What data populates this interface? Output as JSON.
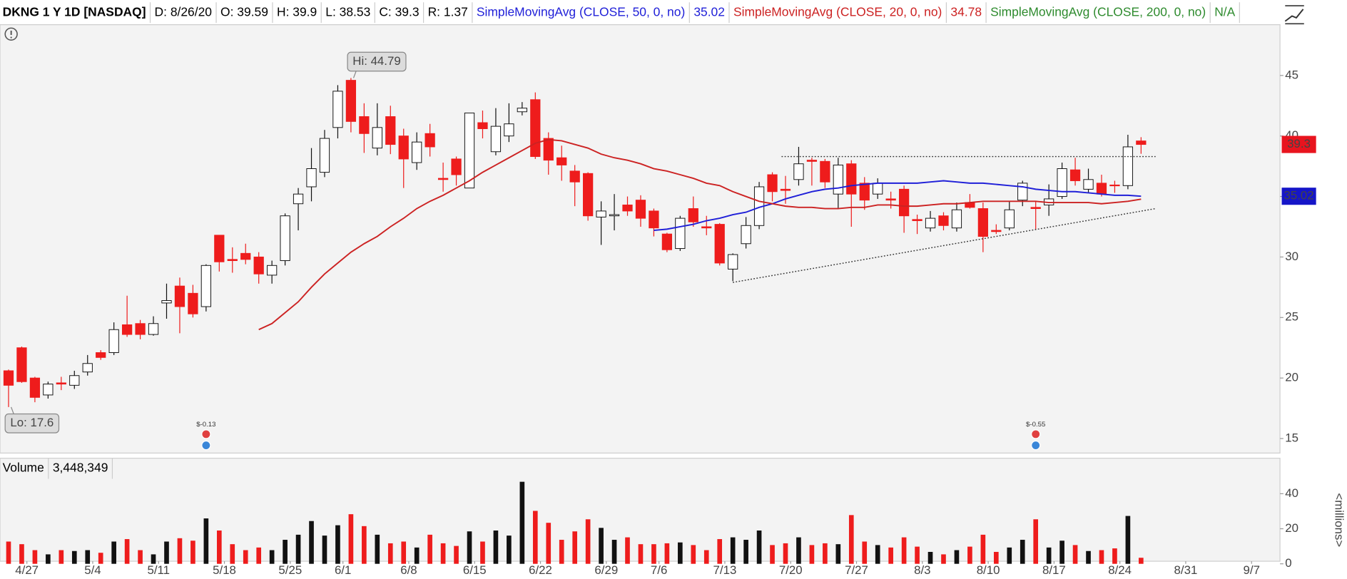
{
  "chart_data": {
    "type": "candlestick",
    "title": "DKNG 1 Y 1D [NASDAQ]",
    "header_fields": [
      "D: 8/26/20",
      "O: 39.59",
      "H: 39.9",
      "L: 38.53",
      "C: 39.3",
      "R: 1.37"
    ],
    "xlim": [
      -0.65,
      96.55
    ],
    "xticks": [
      {
        "value": 1,
        "label": "4/27"
      },
      {
        "value": 6,
        "label": "5/4"
      },
      {
        "value": 11,
        "label": "5/11"
      },
      {
        "value": 16,
        "label": "5/18"
      },
      {
        "value": 21,
        "label": "5/25"
      },
      {
        "value": 25,
        "label": "6/1"
      },
      {
        "value": 30,
        "label": "6/8"
      },
      {
        "value": 35,
        "label": "6/15"
      },
      {
        "value": 40,
        "label": "6/22"
      },
      {
        "value": 45,
        "label": "6/29"
      },
      {
        "value": 49,
        "label": "7/6"
      },
      {
        "value": 54,
        "label": "7/13"
      },
      {
        "value": 59,
        "label": "7/20"
      },
      {
        "value": 64,
        "label": "7/27"
      },
      {
        "value": 69,
        "label": "8/3"
      },
      {
        "value": 74,
        "label": "8/10"
      },
      {
        "value": 79,
        "label": "8/17"
      },
      {
        "value": 84,
        "label": "8/24"
      },
      {
        "value": 89,
        "label": "8/31"
      },
      {
        "value": 94,
        "label": "9/7"
      }
    ],
    "ylim": [
      13.8,
      49.2
    ],
    "yticks": [
      15,
      20,
      25,
      30,
      35,
      40,
      45
    ],
    "up_color": "#ffffff",
    "down_color": "#ee1c1c",
    "open": [
      20.6,
      22.5,
      20.0,
      18.6,
      19.6,
      19.4,
      20.5,
      22.1,
      22.1,
      24.4,
      24.5,
      23.6,
      26.2,
      27.6,
      27.0,
      25.9,
      31.8,
      29.8,
      30.3,
      30.0,
      28.5,
      29.7,
      34.4,
      35.8,
      37.0,
      40.7,
      44.6,
      41.6,
      39.0,
      41.6,
      40.0,
      37.8,
      40.2,
      36.5,
      38.1,
      35.7,
      41.1,
      38.7,
      40.0,
      42.0,
      43.0,
      39.8,
      38.2,
      37.1,
      36.9,
      33.3,
      33.4,
      34.3,
      34.7,
      33.8,
      31.9,
      30.7,
      34.0,
      32.5,
      32.7,
      29.0,
      31.1,
      32.6,
      36.8,
      35.6,
      36.4,
      38.0,
      37.9,
      35.2,
      37.7,
      36.1,
      35.2,
      34.8,
      35.6,
      33.1,
      32.4,
      33.4,
      32.4,
      34.5,
      34.0,
      32.2,
      32.4,
      34.7,
      34.1,
      34.3,
      35.0,
      37.2,
      35.6,
      36.1,
      35.95,
      35.9,
      39.59
    ],
    "high": [
      20.7,
      22.6,
      20.1,
      19.7,
      20.1,
      20.6,
      21.9,
      22.3,
      24.6,
      26.8,
      24.8,
      25.1,
      27.8,
      28.3,
      27.7,
      29.4,
      31.8,
      30.8,
      31.1,
      30.4,
      29.7,
      33.6,
      35.7,
      39.0,
      40.5,
      44.2,
      44.79,
      42.7,
      42.7,
      42.5,
      40.6,
      40.3,
      41.0,
      37.8,
      38.3,
      41.9,
      42.1,
      42.3,
      42.7,
      42.8,
      43.6,
      40.3,
      39.2,
      37.6,
      37.0,
      34.6,
      35.2,
      35.0,
      35.1,
      34.0,
      32.0,
      33.4,
      35.0,
      33.4,
      32.8,
      30.3,
      33.3,
      36.2,
      37.0,
      36.7,
      39.1,
      38.2,
      38.1,
      38.2,
      38.0,
      36.6,
      36.5,
      35.4,
      35.9,
      33.5,
      33.8,
      33.7,
      34.5,
      35.2,
      34.5,
      32.7,
      34.6,
      36.3,
      34.6,
      36.0,
      37.8,
      38.2,
      37.3,
      36.8,
      36.3,
      40.1,
      39.9
    ],
    "low": [
      17.6,
      19.6,
      18.0,
      18.3,
      19.0,
      19.1,
      20.2,
      21.5,
      21.9,
      23.4,
      23.2,
      23.5,
      24.9,
      23.7,
      25.0,
      25.5,
      28.8,
      28.7,
      29.4,
      27.8,
      27.8,
      29.3,
      32.2,
      34.6,
      36.6,
      39.8,
      40.3,
      38.6,
      38.4,
      38.5,
      35.7,
      37.2,
      38.3,
      35.4,
      35.9,
      35.7,
      39.8,
      38.4,
      39.5,
      41.7,
      38.1,
      36.8,
      36.3,
      34.2,
      33.0,
      31.0,
      32.2,
      33.4,
      32.5,
      31.7,
      30.4,
      30.5,
      32.5,
      31.8,
      29.3,
      28.0,
      30.7,
      32.3,
      34.6,
      34.4,
      35.9,
      35.9,
      35.7,
      34.0,
      32.5,
      33.9,
      34.8,
      34.0,
      32.0,
      31.9,
      32.1,
      32.2,
      32.1,
      34.0,
      30.4,
      31.9,
      32.2,
      34.2,
      32.3,
      33.4,
      34.8,
      35.9,
      35.3,
      35.0,
      35.3,
      35.6,
      38.53
    ],
    "close": [
      19.4,
      19.7,
      18.4,
      19.5,
      19.5,
      20.2,
      21.2,
      21.7,
      24.0,
      23.6,
      23.6,
      24.5,
      26.4,
      25.9,
      25.3,
      29.3,
      29.6,
      29.7,
      29.8,
      28.6,
      29.3,
      33.4,
      35.2,
      37.3,
      39.8,
      43.7,
      41.2,
      40.2,
      40.7,
      39.3,
      38.1,
      39.5,
      39.1,
      36.4,
      36.8,
      41.9,
      40.6,
      40.8,
      41.0,
      42.3,
      38.3,
      38.0,
      37.6,
      36.2,
      33.4,
      33.8,
      33.5,
      33.8,
      33.2,
      32.4,
      30.6,
      33.2,
      32.9,
      32.4,
      29.5,
      30.2,
      32.6,
      35.8,
      35.4,
      35.5,
      37.7,
      37.9,
      36.2,
      37.6,
      35.2,
      34.7,
      36.1,
      34.7,
      33.4,
      33.0,
      33.2,
      32.6,
      33.9,
      34.1,
      31.7,
      32.1,
      33.9,
      36.1,
      34.0,
      34.8,
      37.3,
      36.3,
      36.4,
      35.2,
      35.9,
      39.1,
      39.3
    ],
    "series": [
      {
        "name": "SimpleMovingAvg (CLOSE, 50, 0, no)",
        "color": "#1f1fd8",
        "last": 35.02,
        "values": [
          null,
          null,
          null,
          null,
          null,
          null,
          null,
          null,
          null,
          null,
          null,
          null,
          null,
          null,
          null,
          null,
          null,
          null,
          null,
          null,
          null,
          null,
          null,
          null,
          null,
          null,
          null,
          null,
          null,
          null,
          null,
          null,
          null,
          null,
          null,
          null,
          null,
          null,
          null,
          null,
          null,
          null,
          null,
          null,
          null,
          null,
          null,
          null,
          null,
          32.2,
          32.3,
          32.5,
          32.7,
          33.0,
          33.2,
          33.5,
          33.7,
          34.1,
          34.4,
          34.8,
          35.1,
          35.4,
          35.6,
          35.7,
          35.9,
          36.0,
          36.1,
          36.1,
          36.1,
          36.1,
          36.2,
          36.3,
          36.2,
          36.1,
          36.1,
          36.0,
          35.9,
          35.8,
          35.6,
          35.5,
          35.4,
          35.4,
          35.3,
          35.2,
          35.1,
          35.1,
          35.02
        ]
      },
      {
        "name": "SimpleMovingAvg (CLOSE, 20, 0, no)",
        "color": "#cc2222",
        "last": 34.78,
        "values": [
          null,
          null,
          null,
          null,
          null,
          null,
          null,
          null,
          null,
          null,
          null,
          null,
          null,
          null,
          null,
          null,
          null,
          null,
          null,
          24.0,
          24.5,
          25.4,
          26.3,
          27.5,
          28.6,
          29.5,
          30.4,
          31.1,
          31.7,
          32.5,
          33.2,
          34.0,
          34.6,
          35.1,
          35.7,
          36.3,
          37.0,
          37.6,
          38.2,
          38.8,
          39.4,
          39.7,
          39.6,
          39.3,
          39.0,
          38.5,
          38.2,
          38.0,
          37.7,
          37.3,
          37.1,
          36.8,
          36.5,
          36.1,
          35.9,
          35.4,
          35.0,
          34.6,
          34.4,
          34.2,
          34.1,
          34.1,
          34.0,
          34.0,
          34.1,
          34.1,
          34.3,
          34.3,
          34.2,
          34.2,
          34.3,
          34.4,
          34.4,
          34.5,
          34.6,
          34.6,
          34.6,
          34.6,
          34.6,
          34.5,
          34.5,
          34.5,
          34.5,
          34.4,
          34.5,
          34.6,
          34.78
        ]
      },
      {
        "name": "SimpleMovingAvg (CLOSE, 200, 0, no)",
        "color": "#2e8b2e",
        "last": "N/A",
        "values": [
          null,
          null,
          null,
          null,
          null,
          null,
          null,
          null,
          null,
          null,
          null,
          null,
          null,
          null,
          null,
          null,
          null,
          null,
          null,
          null,
          null,
          null,
          null,
          null,
          null,
          null,
          null,
          null,
          null,
          null,
          null,
          null,
          null,
          null,
          null,
          null,
          null,
          null,
          null,
          null,
          null,
          null,
          null,
          null,
          null,
          null,
          null,
          null,
          null,
          null,
          null,
          null,
          null,
          null,
          null,
          null,
          null,
          null,
          null,
          null,
          null,
          null,
          null,
          null,
          null,
          null,
          null,
          null,
          null,
          null,
          null,
          null,
          null,
          null,
          null,
          null,
          null,
          null,
          null,
          null,
          null,
          null,
          null,
          null,
          null,
          null,
          null
        ]
      }
    ],
    "price_tags": [
      {
        "value": 39.3,
        "color": "#e8141e"
      },
      {
        "value": 35.02,
        "color": "#1515c8"
      }
    ],
    "callouts": [
      {
        "label": "Hi: 44.79",
        "x": 26,
        "value": 44.79,
        "position": "above"
      },
      {
        "label": "Lo: 17.6",
        "x": 0,
        "value": 17.6,
        "position": "below"
      }
    ],
    "trendlines": [
      {
        "x": [
          55,
          87.1
        ],
        "y": [
          27.9,
          34.0
        ]
      },
      {
        "x": [
          58.7,
          87.1
        ],
        "y": [
          38.3,
          38.3
        ]
      }
    ],
    "events": [
      {
        "x": 15,
        "label": "$-0.13"
      },
      {
        "x": 78,
        "label": "$-0.55"
      }
    ],
    "volume": {
      "label": "Volume",
      "current": "3,448,349",
      "axis_label": "<millions>",
      "up_color": "#111111",
      "down_color": "#ee1c1c",
      "ylim": [
        0,
        48
      ],
      "yticks": [
        0,
        20,
        40
      ],
      "values": [
        12.7,
        11.2,
        7.8,
        5.4,
        7.8,
        7.3,
        7.8,
        6.3,
        12.7,
        14.1,
        7.8,
        5.4,
        12.7,
        14.6,
        13.2,
        25.9,
        19.0,
        11.2,
        7.8,
        9.3,
        7.8,
        13.7,
        16.6,
        24.4,
        16.1,
        22.0,
        28.3,
        21.5,
        16.6,
        11.7,
        12.7,
        9.3,
        16.6,
        11.7,
        10.2,
        18.5,
        12.7,
        19.0,
        16.1,
        46.8,
        30.2,
        23.4,
        13.7,
        18.5,
        25.4,
        20.5,
        13.7,
        15.1,
        11.2,
        11.2,
        11.7,
        12.2,
        10.7,
        7.8,
        14.1,
        15.1,
        13.7,
        19.0,
        10.7,
        11.7,
        15.1,
        10.7,
        11.7,
        11.2,
        27.8,
        12.7,
        10.7,
        9.3,
        15.1,
        9.8,
        6.8,
        5.4,
        7.8,
        9.8,
        16.6,
        6.8,
        9.3,
        13.7,
        25.4,
        9.3,
        13.2,
        10.7,
        7.3,
        7.8,
        8.8,
        27.3,
        3.448349
      ]
    }
  }
}
